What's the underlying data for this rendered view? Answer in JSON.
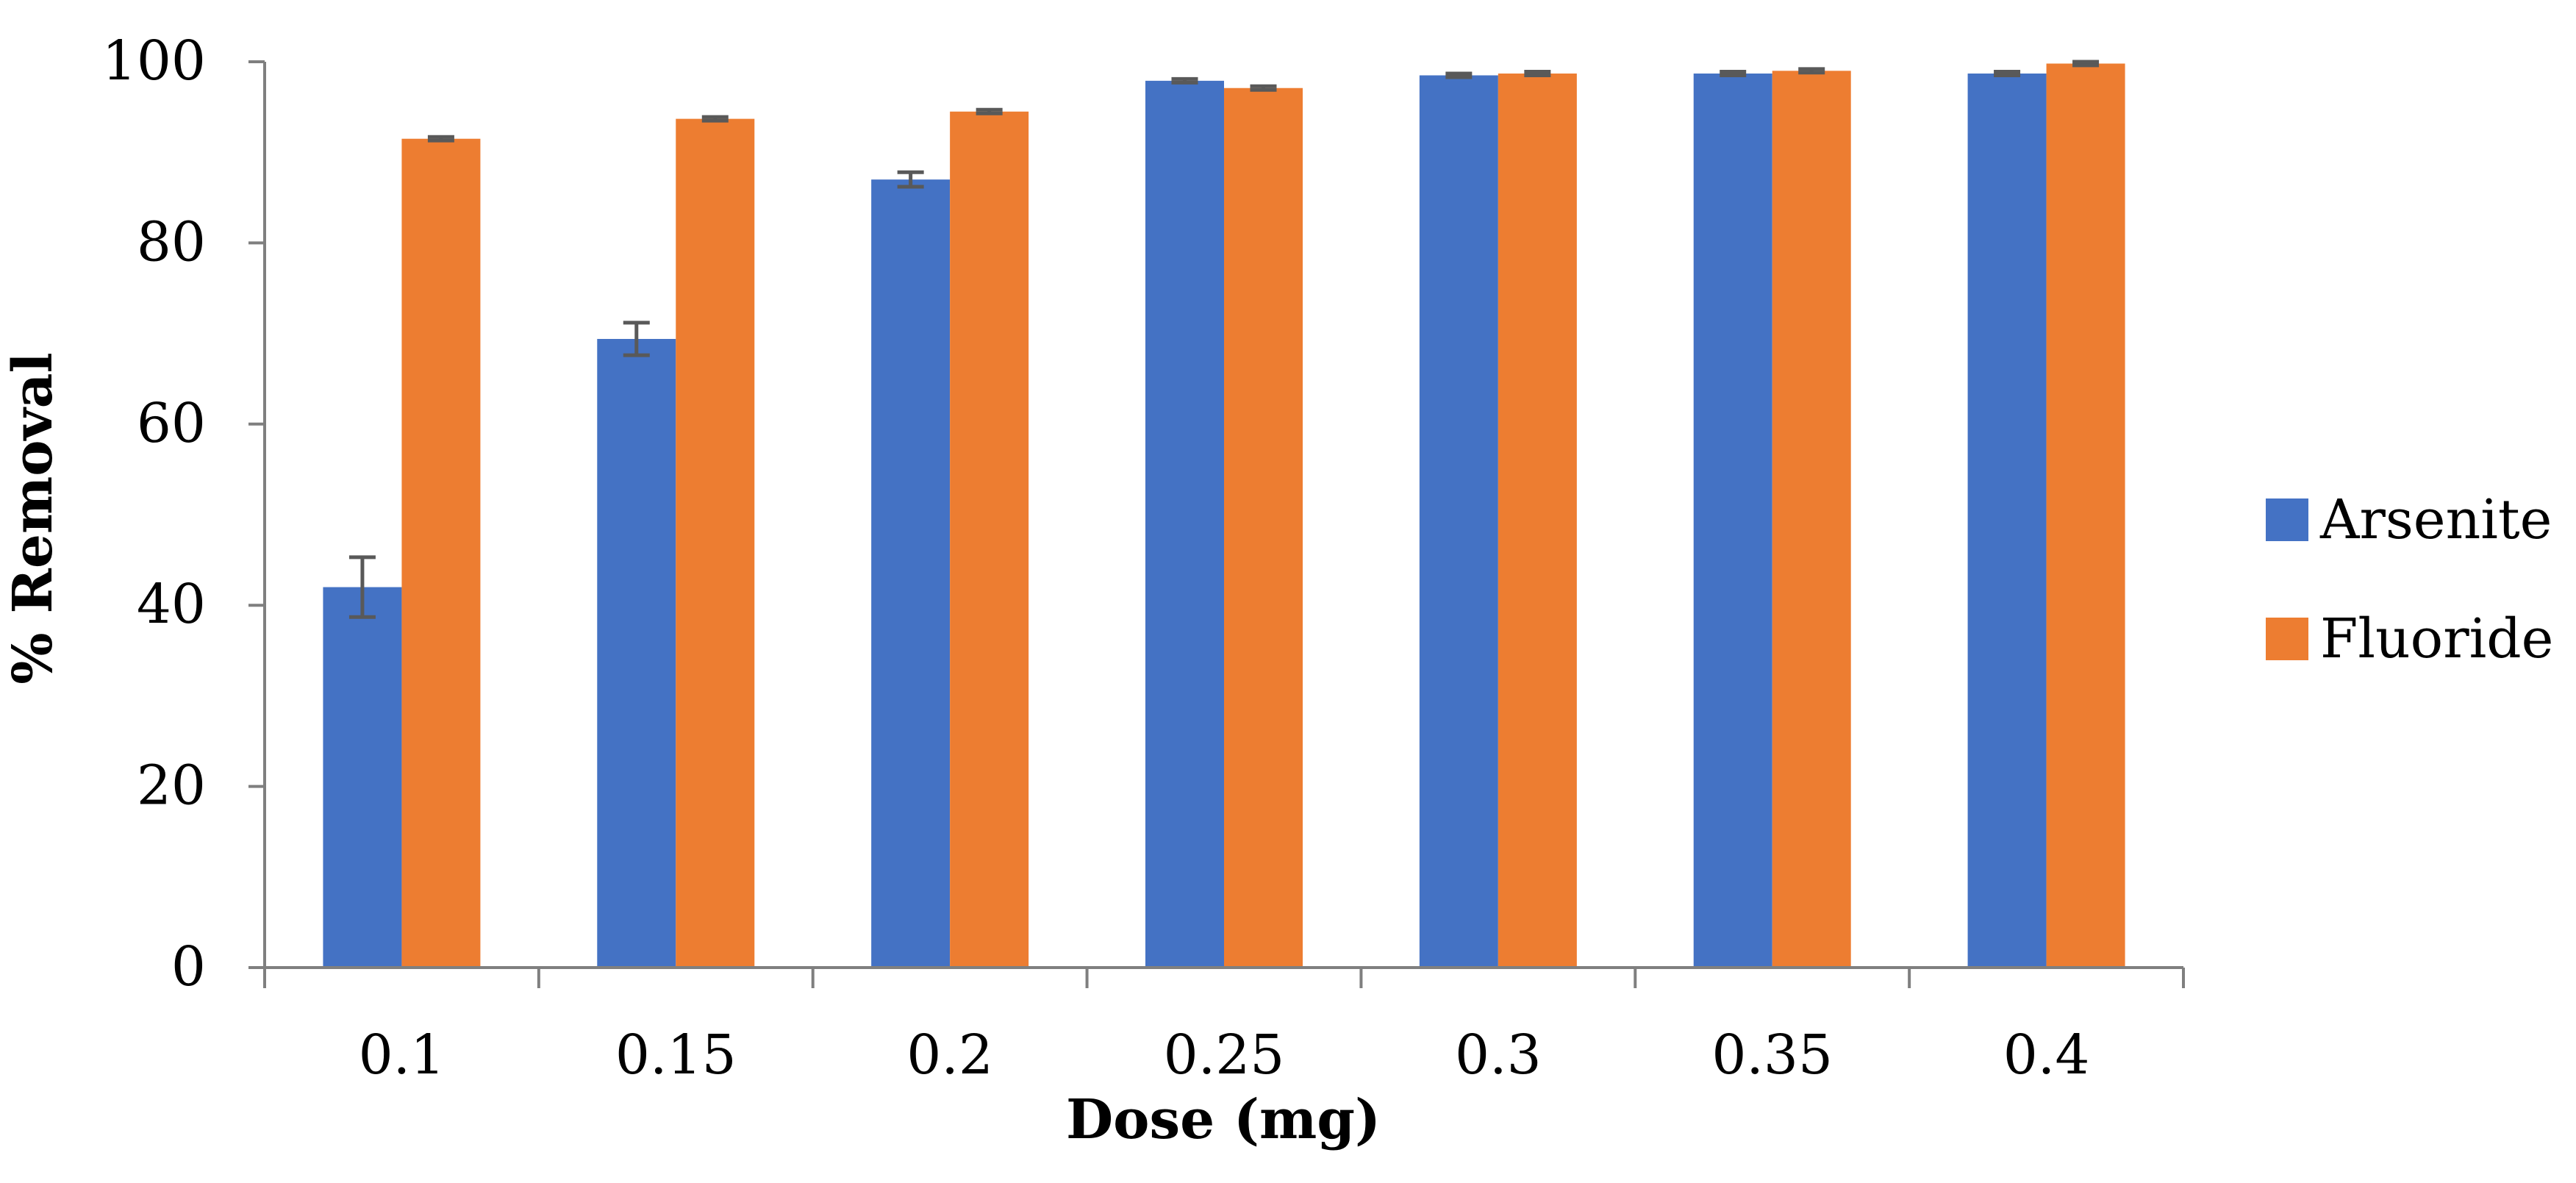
{
  "chart_data": {
    "type": "bar",
    "title": "",
    "xlabel": "Dose (mg)",
    "ylabel": "% Removal",
    "categories": [
      "0.1",
      "0.15",
      "0.2",
      "0.25",
      "0.3",
      "0.35",
      "0.4"
    ],
    "ylim": [
      0,
      100
    ],
    "yticks": [
      "0",
      "20",
      "40",
      "60",
      "80",
      "100"
    ],
    "grid": false,
    "legend_position": "right",
    "series": [
      {
        "name": "Arsenite",
        "color": "#4472C4",
        "values": [
          42.0,
          69.4,
          87.0,
          97.9,
          98.5,
          98.7,
          98.7
        ],
        "errors": [
          3.3,
          1.8,
          0.8,
          0.2,
          0.2,
          0.2,
          0.2
        ]
      },
      {
        "name": "Fluoride",
        "color": "#ED7D31",
        "values": [
          91.5,
          93.7,
          94.5,
          97.1,
          98.7,
          99.0,
          99.8
        ],
        "errors": [
          0.2,
          0.2,
          0.2,
          0.2,
          0.2,
          0.2,
          0.2
        ]
      }
    ],
    "error_bar_color": "#595959",
    "axis_color": "#7F7F7F"
  }
}
